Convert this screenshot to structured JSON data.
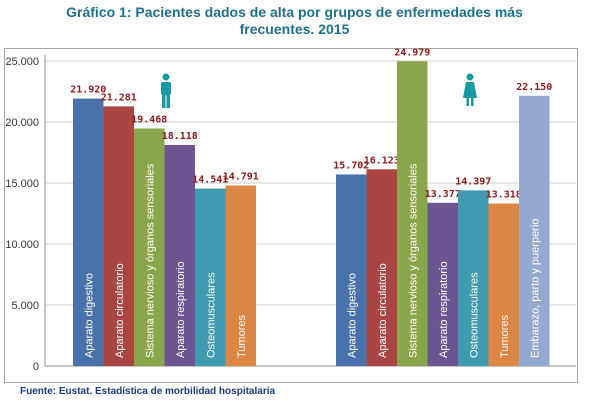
{
  "title_lines": [
    "Gráfico 1: Pacientes dados de alta por grupos de enfermedades más",
    "frecuentes. 2015"
  ],
  "source": "Fuente: Eustat. Estadística de morbilidad hospitalaria",
  "icons": {
    "male": "man-icon",
    "female": "woman-icon"
  },
  "colors": {
    "title": "#1f6f8b",
    "person_icon": "#1a9aa0",
    "value_label": "#8b1a1a",
    "Aparato digestivo": "#4a72aa",
    "Aparato circulatorio": "#a94543",
    "Sistema nervioso y órganos sensoriales": "#8aa64a",
    "Aparato respiratorio": "#6d5592",
    "Osteomusculares": "#3e9bb0",
    "Tumores": "#dc8643",
    "Embarazo, parto y puerperio": "#93a9cf"
  },
  "chart_data": {
    "type": "bar",
    "y_ticks": [
      "0",
      "5.000",
      "10.000",
      "15.000",
      "20.000",
      "25.000"
    ],
    "ylim": [
      0,
      25000
    ],
    "grid": true,
    "groups": [
      {
        "icon": "man-icon",
        "categories": [
          "Aparato digestivo",
          "Aparato circulatorio",
          "Sistema nervioso y órganos sensoriales",
          "Aparato respiratorio",
          "Osteomusculares",
          "Tumores"
        ],
        "values": [
          21920,
          21281,
          19468,
          18118,
          14541,
          14791
        ],
        "labels": [
          "21.920",
          "21.281",
          "19.468",
          "18.118",
          "14.541",
          "14.791"
        ]
      },
      {
        "icon": "woman-icon",
        "categories": [
          "Aparato digestivo",
          "Aparato circulatorio",
          "Sistema nervioso y órganos sensoriales",
          "Aparato respiratorio",
          "Osteomusculares",
          "Tumores",
          "Embarazo, parto y puerperio"
        ],
        "values": [
          15702,
          16123,
          24979,
          13377,
          14397,
          13318,
          22150
        ],
        "labels": [
          "15.702",
          "16.123",
          "24.979",
          "13.377",
          "14.397",
          "13.318",
          "22.150"
        ]
      }
    ]
  }
}
